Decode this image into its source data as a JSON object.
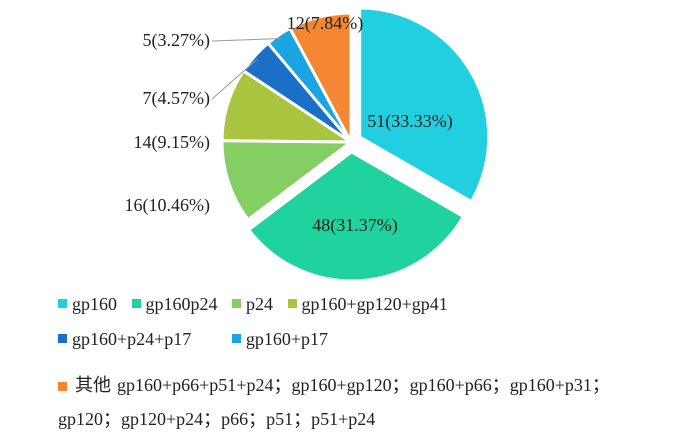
{
  "chart_data": {
    "type": "pie",
    "slices": [
      {
        "label": "gp160",
        "value": 51,
        "display": "51(33.33%)",
        "color": "#22CFE0"
      },
      {
        "label": "gp160p24",
        "value": 48,
        "display": "48(31.37%)",
        "color": "#1FD29E"
      },
      {
        "label": "p24",
        "value": 16,
        "display": "16(10.46%)",
        "color": "#84CE63"
      },
      {
        "label": "gp160+gp120+gp41",
        "value": 14,
        "display": "14(9.15%)",
        "color": "#A9C540"
      },
      {
        "label": "gp160+p24+p17",
        "value": 7,
        "display": "7(4.57%)",
        "color": "#1A6FC7"
      },
      {
        "label": "gp160+p17",
        "value": 5,
        "display": "5(3.27%)",
        "color": "#1BA4E2"
      },
      {
        "label": "其他",
        "value": 12,
        "display": "12(7.84%)",
        "color": "#F48634"
      }
    ],
    "legend": {
      "row1": [
        "gp160",
        "gp160p24",
        "p24",
        "gp160+gp120+gp41"
      ],
      "row2": [
        "gp160+p24+p17",
        "gp160+p17"
      ],
      "other_label": "其他",
      "other_detail": "gp160+p66+p51+p24；gp160+gp120；gp160+p66；gp160+p31；gp120；gp120+p24；p66；p51；p51+p24"
    }
  }
}
